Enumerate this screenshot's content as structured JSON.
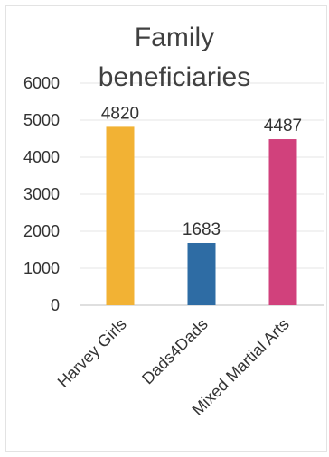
{
  "chart_data": {
    "type": "bar",
    "title_lines": [
      "Family",
      "beneficiaries"
    ],
    "categories": [
      "Harvey Girls",
      "Dads4Dads",
      "Mixed Martial Arts"
    ],
    "values": [
      4820,
      1683,
      4487
    ],
    "bar_colors": [
      "#f2b234",
      "#2e6ca4",
      "#d1417c"
    ],
    "xlabel": "",
    "ylabel": "",
    "ylim": [
      0,
      6000
    ],
    "yticks": [
      0,
      1000,
      2000,
      3000,
      4000,
      5000,
      6000
    ],
    "grid": true,
    "legend": false
  }
}
